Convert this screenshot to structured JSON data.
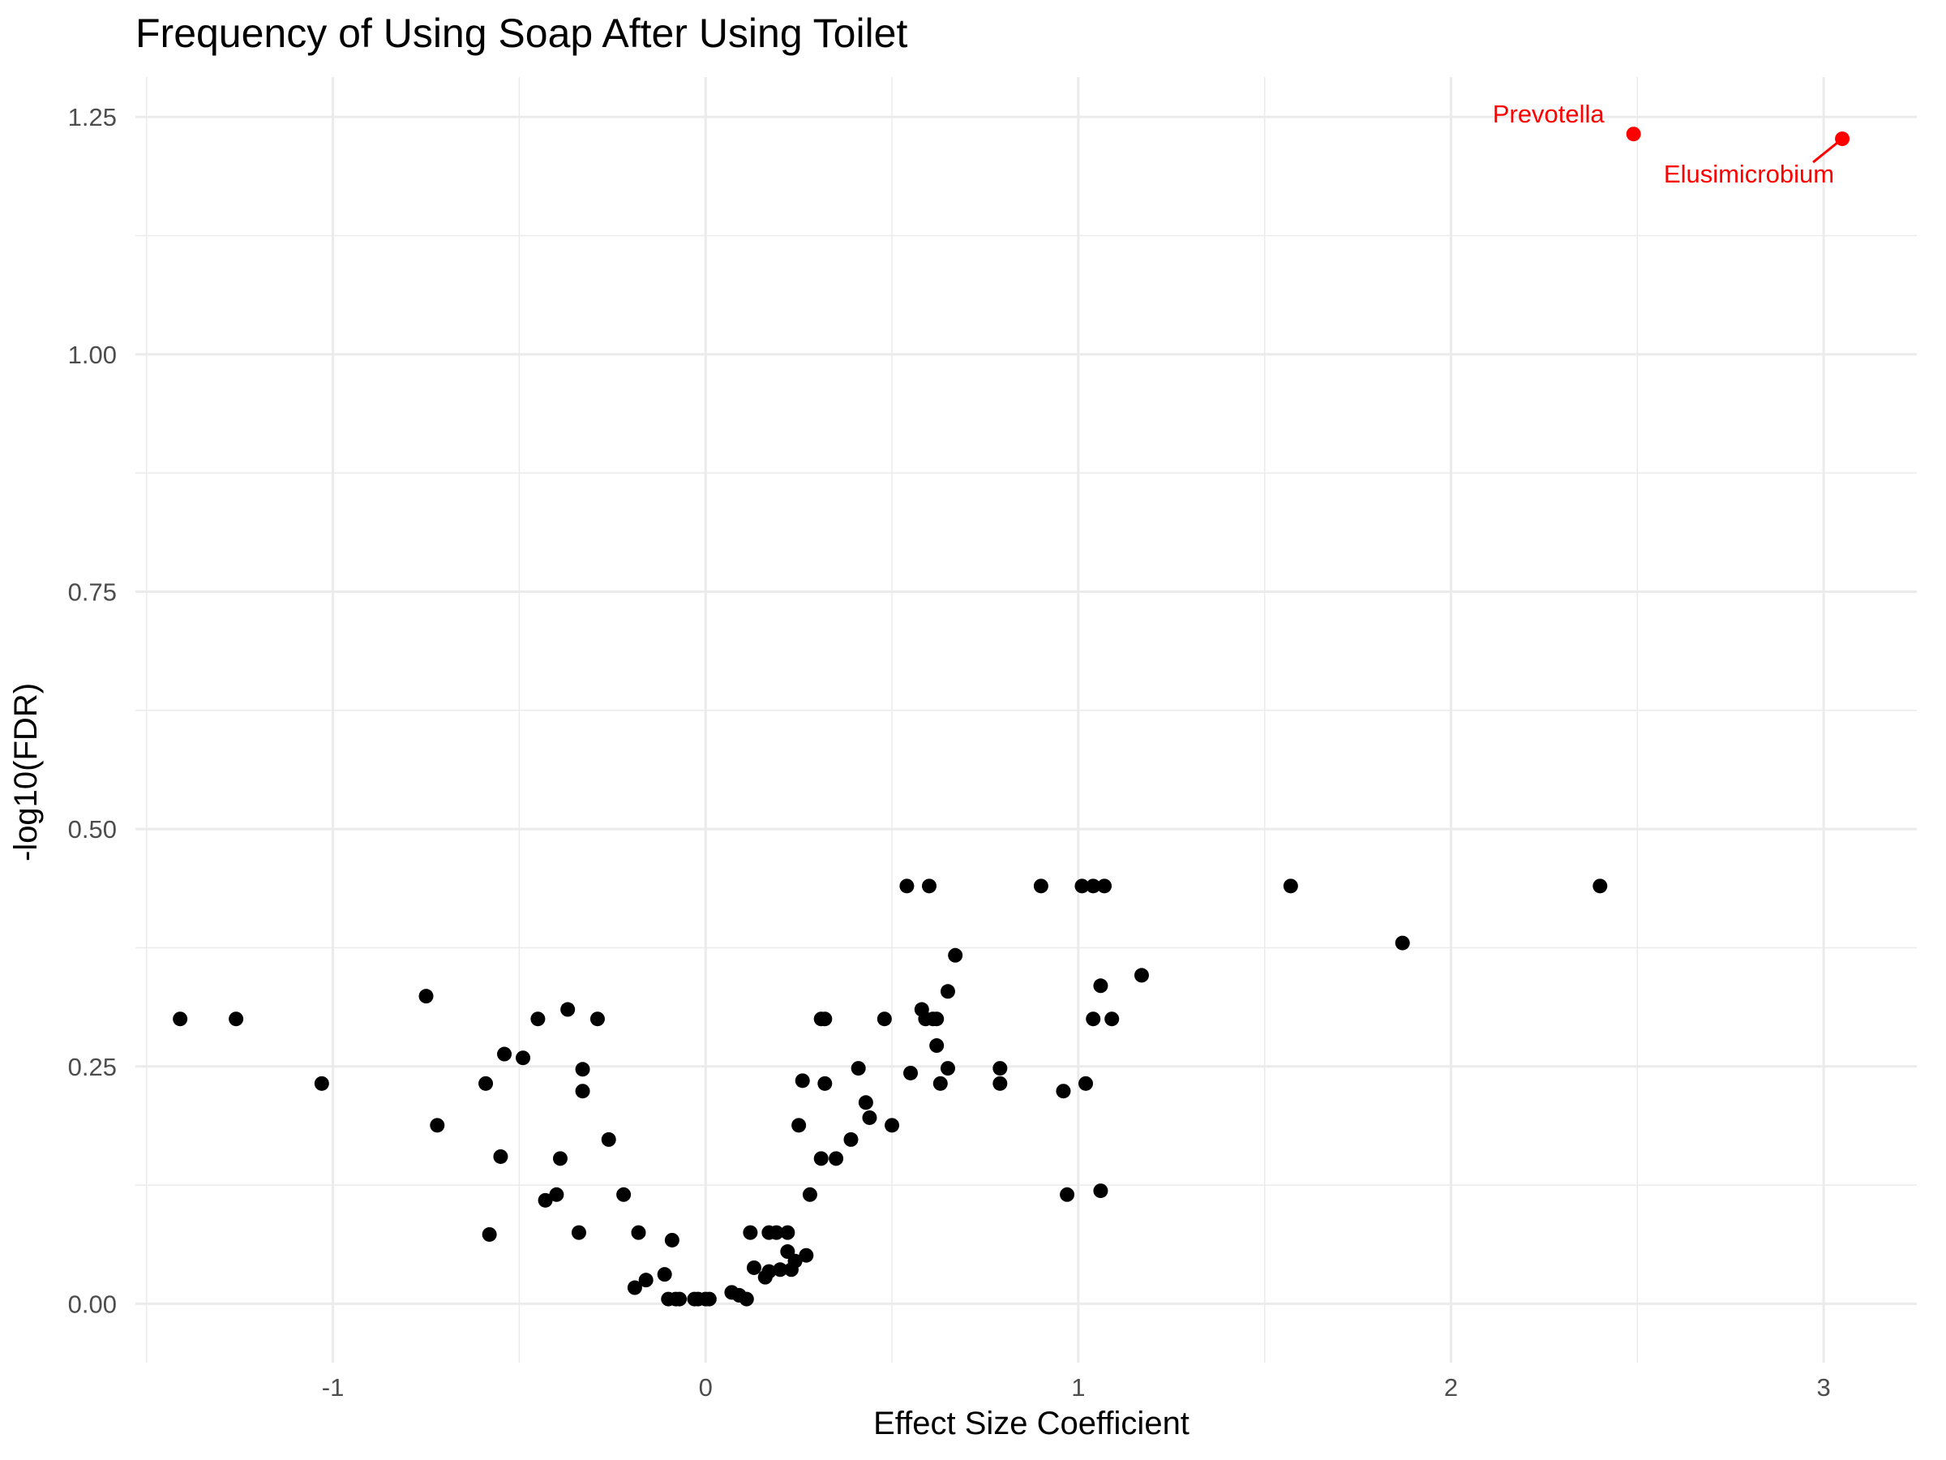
{
  "chart_data": {
    "type": "scatter",
    "title": "Frequency of Using Soap After Using Toilet",
    "xlabel": "Effect Size Coefficient",
    "ylabel": "-log10(FDR)",
    "xlim": [
      -1.53,
      3.25
    ],
    "ylim": [
      -0.062,
      1.292
    ],
    "x_ticks": [
      {
        "value": -1,
        "label": "-1"
      },
      {
        "value": 0,
        "label": "0"
      },
      {
        "value": 1,
        "label": "1"
      },
      {
        "value": 2,
        "label": "2"
      },
      {
        "value": 3,
        "label": "3"
      }
    ],
    "y_ticks": [
      {
        "value": 0,
        "label": "0.00"
      },
      {
        "value": 0.25,
        "label": "0.25"
      },
      {
        "value": 0.5,
        "label": "0.50"
      },
      {
        "value": 0.75,
        "label": "0.75"
      },
      {
        "value": 1,
        "label": "1.00"
      },
      {
        "value": 1.25,
        "label": "1.25"
      }
    ],
    "x_minor": [
      -1.5,
      -0.5,
      0.5,
      1.5,
      2.5
    ],
    "y_minor": [
      0.125,
      0.375,
      0.625,
      0.875,
      1.125
    ],
    "grid": true,
    "point_color": "#000000",
    "highlight_color": "#ff0000",
    "grid_color": "#ebebeb",
    "points": [
      {
        "x": -1.41,
        "y": 0.3
      },
      {
        "x": -1.26,
        "y": 0.3
      },
      {
        "x": -1.03,
        "y": 0.232
      },
      {
        "x": -0.75,
        "y": 0.324
      },
      {
        "x": -0.72,
        "y": 0.188
      },
      {
        "x": -0.59,
        "y": 0.232
      },
      {
        "x": -0.58,
        "y": 0.073
      },
      {
        "x": -0.55,
        "y": 0.155
      },
      {
        "x": -0.54,
        "y": 0.263
      },
      {
        "x": -0.49,
        "y": 0.259
      },
      {
        "x": -0.45,
        "y": 0.3
      },
      {
        "x": -0.43,
        "y": 0.109
      },
      {
        "x": -0.4,
        "y": 0.115
      },
      {
        "x": -0.39,
        "y": 0.153
      },
      {
        "x": -0.37,
        "y": 0.31
      },
      {
        "x": -0.34,
        "y": 0.075
      },
      {
        "x": -0.33,
        "y": 0.247
      },
      {
        "x": -0.33,
        "y": 0.224
      },
      {
        "x": -0.29,
        "y": 0.3
      },
      {
        "x": -0.26,
        "y": 0.173
      },
      {
        "x": -0.22,
        "y": 0.115
      },
      {
        "x": -0.18,
        "y": 0.075
      },
      {
        "x": -0.16,
        "y": 0.025
      },
      {
        "x": -0.19,
        "y": 0.017
      },
      {
        "x": -0.11,
        "y": 0.031
      },
      {
        "x": -0.09,
        "y": 0.067
      },
      {
        "x": -0.1,
        "y": 0.005
      },
      {
        "x": -0.08,
        "y": 0.005
      },
      {
        "x": -0.07,
        "y": 0.005
      },
      {
        "x": -0.03,
        "y": 0.005
      },
      {
        "x": -0.02,
        "y": 0.005
      },
      {
        "x": 0.0,
        "y": 0.005
      },
      {
        "x": 0.01,
        "y": 0.005
      },
      {
        "x": 0.07,
        "y": 0.012
      },
      {
        "x": 0.09,
        "y": 0.009
      },
      {
        "x": 0.11,
        "y": 0.005
      },
      {
        "x": 0.12,
        "y": 0.075
      },
      {
        "x": 0.13,
        "y": 0.038
      },
      {
        "x": 0.16,
        "y": 0.028
      },
      {
        "x": 0.17,
        "y": 0.075
      },
      {
        "x": 0.17,
        "y": 0.034
      },
      {
        "x": 0.19,
        "y": 0.075
      },
      {
        "x": 0.2,
        "y": 0.036
      },
      {
        "x": 0.22,
        "y": 0.075
      },
      {
        "x": 0.22,
        "y": 0.055
      },
      {
        "x": 0.23,
        "y": 0.036
      },
      {
        "x": 0.24,
        "y": 0.045
      },
      {
        "x": 0.25,
        "y": 0.188
      },
      {
        "x": 0.26,
        "y": 0.235
      },
      {
        "x": 0.27,
        "y": 0.051
      },
      {
        "x": 0.28,
        "y": 0.115
      },
      {
        "x": 0.31,
        "y": 0.3
      },
      {
        "x": 0.32,
        "y": 0.3
      },
      {
        "x": 0.31,
        "y": 0.153
      },
      {
        "x": 0.32,
        "y": 0.232
      },
      {
        "x": 0.35,
        "y": 0.153
      },
      {
        "x": 0.39,
        "y": 0.173
      },
      {
        "x": 0.41,
        "y": 0.248
      },
      {
        "x": 0.43,
        "y": 0.212
      },
      {
        "x": 0.44,
        "y": 0.196
      },
      {
        "x": 0.48,
        "y": 0.3
      },
      {
        "x": 0.5,
        "y": 0.188
      },
      {
        "x": 0.54,
        "y": 0.44
      },
      {
        "x": 0.55,
        "y": 0.243
      },
      {
        "x": 0.58,
        "y": 0.31
      },
      {
        "x": 0.59,
        "y": 0.3
      },
      {
        "x": 0.6,
        "y": 0.44
      },
      {
        "x": 0.61,
        "y": 0.3
      },
      {
        "x": 0.62,
        "y": 0.3
      },
      {
        "x": 0.62,
        "y": 0.272
      },
      {
        "x": 0.63,
        "y": 0.232
      },
      {
        "x": 0.65,
        "y": 0.329
      },
      {
        "x": 0.65,
        "y": 0.248
      },
      {
        "x": 0.67,
        "y": 0.367
      },
      {
        "x": 0.79,
        "y": 0.248
      },
      {
        "x": 0.79,
        "y": 0.232
      },
      {
        "x": 0.9,
        "y": 0.44
      },
      {
        "x": 0.96,
        "y": 0.224
      },
      {
        "x": 0.97,
        "y": 0.115
      },
      {
        "x": 1.01,
        "y": 0.44
      },
      {
        "x": 1.02,
        "y": 0.232
      },
      {
        "x": 1.04,
        "y": 0.44
      },
      {
        "x": 1.04,
        "y": 0.3
      },
      {
        "x": 1.06,
        "y": 0.335
      },
      {
        "x": 1.06,
        "y": 0.119
      },
      {
        "x": 1.07,
        "y": 0.44
      },
      {
        "x": 1.09,
        "y": 0.3
      },
      {
        "x": 1.17,
        "y": 0.346
      },
      {
        "x": 1.57,
        "y": 0.44
      },
      {
        "x": 1.87,
        "y": 0.38
      },
      {
        "x": 2.4,
        "y": 0.44
      }
    ],
    "highlighted": [
      {
        "x": 2.49,
        "y": 1.232,
        "label": "Prevotella"
      },
      {
        "x": 3.05,
        "y": 1.227,
        "label": "Elusimicrobium"
      }
    ]
  }
}
